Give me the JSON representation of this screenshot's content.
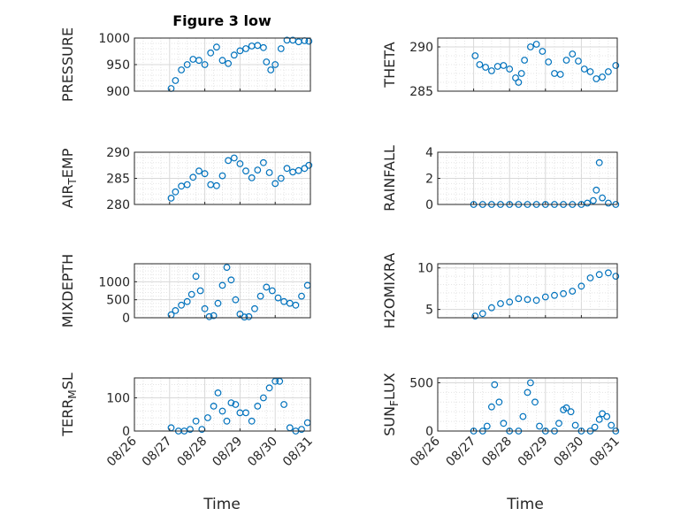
{
  "title": "Figure 3 low",
  "xlabel": "Time",
  "x_tick_labels": [
    "08/26",
    "08/27",
    "08/28",
    "08/29",
    "08/30",
    "08/31"
  ],
  "marker_color": "#0072BD",
  "chart_data": [
    {
      "type": "scatter",
      "ylabel": "PRESSURE",
      "ylim": [
        900,
        1000
      ],
      "yticks": [
        900,
        950,
        1000
      ],
      "grid": true,
      "show_xticklabels": false,
      "x": [
        "08/27 01:00",
        "08/27 04:00",
        "08/27 08:00",
        "08/27 12:00",
        "08/27 16:00",
        "08/27 20:00",
        "08/28 00:00",
        "08/28 04:00",
        "08/28 08:00",
        "08/28 12:00",
        "08/28 16:00",
        "08/28 20:00",
        "08/29 00:00",
        "08/29 04:00",
        "08/29 08:00",
        "08/29 12:00",
        "08/29 16:00",
        "08/29 18:00",
        "08/29 21:00",
        "08/30 00:00",
        "08/30 04:00",
        "08/30 08:00",
        "08/30 12:00",
        "08/30 16:00",
        "08/30 20:00",
        "08/30 23:00"
      ],
      "y": [
        905,
        920,
        940,
        950,
        960,
        958,
        950,
        972,
        983,
        958,
        952,
        968,
        976,
        980,
        985,
        986,
        982,
        955,
        940,
        950,
        980,
        996,
        996,
        993,
        995,
        994
      ]
    },
    {
      "type": "scatter",
      "ylabel": "THETA",
      "ylim": [
        285,
        291
      ],
      "yticks": [
        285,
        290
      ],
      "grid": true,
      "show_xticklabels": false,
      "x": [
        "08/27 01:00",
        "08/27 04:00",
        "08/27 08:00",
        "08/27 12:00",
        "08/27 16:00",
        "08/27 20:00",
        "08/28 00:00",
        "08/28 04:00",
        "08/28 06:00",
        "08/28 08:00",
        "08/28 10:00",
        "08/28 14:00",
        "08/28 18:00",
        "08/28 22:00",
        "08/29 02:00",
        "08/29 06:00",
        "08/29 10:00",
        "08/29 14:00",
        "08/29 18:00",
        "08/29 22:00",
        "08/30 02:00",
        "08/30 06:00",
        "08/30 10:00",
        "08/30 14:00",
        "08/30 18:00",
        "08/30 23:00"
      ],
      "y": [
        289.0,
        288.0,
        287.7,
        287.3,
        287.8,
        287.9,
        287.5,
        286.5,
        286.0,
        287.0,
        288.5,
        290.0,
        290.3,
        289.5,
        288.3,
        287.0,
        286.9,
        288.5,
        289.2,
        288.4,
        287.5,
        287.2,
        286.4,
        286.6,
        287.2,
        287.9
      ]
    },
    {
      "type": "scatter",
      "ylabel": "AIR",
      "ylabel_sub": "T",
      "ylabel_suffix": "EMP",
      "ylim": [
        280,
        290
      ],
      "yticks": [
        280,
        285,
        290
      ],
      "grid": true,
      "show_xticklabels": false,
      "x": [
        "08/27 01:00",
        "08/27 04:00",
        "08/27 08:00",
        "08/27 12:00",
        "08/27 16:00",
        "08/27 20:00",
        "08/28 00:00",
        "08/28 04:00",
        "08/28 08:00",
        "08/28 12:00",
        "08/28 16:00",
        "08/28 20:00",
        "08/29 00:00",
        "08/29 04:00",
        "08/29 08:00",
        "08/29 12:00",
        "08/29 16:00",
        "08/29 20:00",
        "08/30 00:00",
        "08/30 04:00",
        "08/30 08:00",
        "08/30 12:00",
        "08/30 16:00",
        "08/30 20:00",
        "08/30 23:00"
      ],
      "y": [
        281.2,
        282.4,
        283.5,
        283.8,
        285.2,
        286.4,
        285.9,
        283.8,
        283.6,
        285.5,
        288.4,
        288.9,
        287.8,
        286.4,
        285.1,
        286.6,
        288.0,
        286.1,
        284.0,
        285.0,
        286.9,
        286.2,
        286.5,
        286.9,
        287.5
      ]
    },
    {
      "type": "scatter",
      "ylabel": "RAINFALL",
      "ylim": [
        0,
        4
      ],
      "yticks": [
        0,
        2,
        4
      ],
      "grid": true,
      "show_xticklabels": false,
      "x": [
        "08/27 00:00",
        "08/27 06:00",
        "08/27 12:00",
        "08/27 18:00",
        "08/28 00:00",
        "08/28 06:00",
        "08/28 12:00",
        "08/28 18:00",
        "08/29 00:00",
        "08/29 06:00",
        "08/29 12:00",
        "08/29 18:00",
        "08/30 00:00",
        "08/30 04:00",
        "08/30 08:00",
        "08/30 10:00",
        "08/30 12:00",
        "08/30 14:00",
        "08/30 18:00",
        "08/30 23:00"
      ],
      "y": [
        0,
        0,
        0,
        0,
        0,
        0,
        0,
        0,
        0,
        0,
        0,
        0,
        0,
        0.1,
        0.3,
        1.1,
        3.2,
        0.5,
        0.1,
        0
      ]
    },
    {
      "type": "scatter",
      "ylabel": "MIXDEPTH",
      "ylim": [
        0,
        1500
      ],
      "yticks": [
        0,
        500,
        1000
      ],
      "grid": true,
      "show_xticklabels": false,
      "x": [
        "08/27 01:00",
        "08/27 04:00",
        "08/27 08:00",
        "08/27 12:00",
        "08/27 15:00",
        "08/27 18:00",
        "08/27 21:00",
        "08/28 00:00",
        "08/28 03:00",
        "08/28 06:00",
        "08/28 09:00",
        "08/28 12:00",
        "08/28 15:00",
        "08/28 18:00",
        "08/28 21:00",
        "08/29 00:00",
        "08/29 03:00",
        "08/29 06:00",
        "08/29 10:00",
        "08/29 14:00",
        "08/29 18:00",
        "08/29 22:00",
        "08/30 02:00",
        "08/30 06:00",
        "08/30 10:00",
        "08/30 14:00",
        "08/30 18:00",
        "08/30 22:00"
      ],
      "y": [
        80,
        200,
        350,
        450,
        650,
        1150,
        750,
        250,
        30,
        60,
        400,
        900,
        1400,
        1050,
        500,
        100,
        20,
        30,
        250,
        600,
        850,
        750,
        550,
        450,
        400,
        350,
        600,
        900
      ]
    },
    {
      "type": "scatter",
      "ylabel": "H2OMIXRA",
      "ylim": [
        4,
        10.5
      ],
      "yticks": [
        5,
        10
      ],
      "grid": true,
      "show_xticklabels": false,
      "x": [
        "08/27 01:00",
        "08/27 06:00",
        "08/27 12:00",
        "08/27 18:00",
        "08/28 00:00",
        "08/28 06:00",
        "08/28 12:00",
        "08/28 18:00",
        "08/29 00:00",
        "08/29 06:00",
        "08/29 12:00",
        "08/29 18:00",
        "08/30 00:00",
        "08/30 06:00",
        "08/30 12:00",
        "08/30 18:00",
        "08/30 23:00"
      ],
      "y": [
        4.2,
        4.5,
        5.2,
        5.7,
        5.9,
        6.3,
        6.2,
        6.1,
        6.5,
        6.7,
        6.9,
        7.2,
        7.8,
        8.8,
        9.2,
        9.4,
        9.0
      ]
    },
    {
      "type": "scatter",
      "ylabel": "TERR",
      "ylabel_sub": "M",
      "ylabel_suffix": "SL",
      "ylim": [
        0,
        160
      ],
      "yticks": [
        0,
        100
      ],
      "grid": true,
      "show_xticklabels": true,
      "x": [
        "08/27 01:00",
        "08/27 06:00",
        "08/27 10:00",
        "08/27 14:00",
        "08/27 18:00",
        "08/27 22:00",
        "08/28 02:00",
        "08/28 06:00",
        "08/28 09:00",
        "08/28 12:00",
        "08/28 15:00",
        "08/28 18:00",
        "08/28 21:00",
        "08/29 00:00",
        "08/29 04:00",
        "08/29 08:00",
        "08/29 12:00",
        "08/29 16:00",
        "08/29 20:00",
        "08/30 00:00",
        "08/30 03:00",
        "08/30 06:00",
        "08/30 10:00",
        "08/30 14:00",
        "08/30 18:00",
        "08/30 22:00"
      ],
      "y": [
        10,
        0,
        0,
        5,
        30,
        5,
        40,
        75,
        115,
        60,
        30,
        85,
        80,
        55,
        55,
        30,
        75,
        100,
        130,
        150,
        150,
        80,
        10,
        0,
        5,
        25
      ]
    },
    {
      "type": "scatter",
      "ylabel": "SUN",
      "ylabel_sub": "F",
      "ylabel_suffix": "LUX",
      "ylim": [
        0,
        550
      ],
      "yticks": [
        0,
        500
      ],
      "grid": true,
      "show_xticklabels": true,
      "x": [
        "08/27 00:00",
        "08/27 06:00",
        "08/27 09:00",
        "08/27 12:00",
        "08/27 14:00",
        "08/27 17:00",
        "08/27 20:00",
        "08/28 00:00",
        "08/28 06:00",
        "08/28 09:00",
        "08/28 12:00",
        "08/28 14:00",
        "08/28 17:00",
        "08/28 20:00",
        "08/29 00:00",
        "08/29 06:00",
        "08/29 09:00",
        "08/29 12:00",
        "08/29 14:00",
        "08/29 17:00",
        "08/29 20:00",
        "08/30 00:00",
        "08/30 06:00",
        "08/30 09:00",
        "08/30 12:00",
        "08/30 14:00",
        "08/30 17:00",
        "08/30 20:00",
        "08/30 23:00"
      ],
      "y": [
        0,
        0,
        50,
        250,
        480,
        300,
        80,
        0,
        0,
        150,
        400,
        500,
        300,
        50,
        0,
        0,
        80,
        220,
        240,
        200,
        60,
        0,
        0,
        40,
        120,
        180,
        150,
        60,
        0
      ]
    }
  ]
}
